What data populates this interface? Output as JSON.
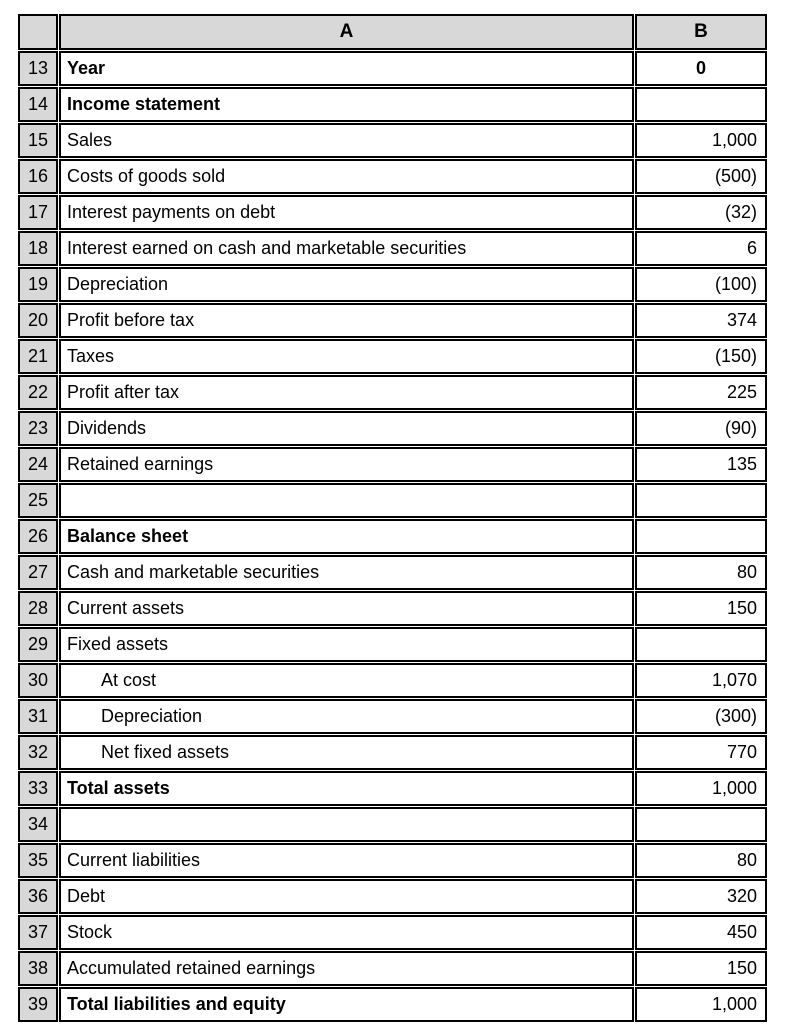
{
  "table": {
    "column_headers": [
      "A",
      "B"
    ],
    "colors": {
      "header_bg": "#d8d8d8",
      "grid_border": "#000000",
      "cell_bg": "#ffffff",
      "text": "#000000"
    },
    "rows": [
      {
        "num": "13",
        "label": "Year",
        "value": "0",
        "label_bold": true,
        "value_bold": true,
        "value_align": "center"
      },
      {
        "num": "14",
        "label": "Income statement",
        "value": "",
        "label_bold": true
      },
      {
        "num": "15",
        "label": "Sales",
        "value": "1,000"
      },
      {
        "num": "16",
        "label": "Costs of goods sold",
        "value": "(500)"
      },
      {
        "num": "17",
        "label": "Interest payments on debt",
        "value": "(32)"
      },
      {
        "num": "18",
        "label": "Interest earned on cash and marketable securities",
        "value": "6"
      },
      {
        "num": "19",
        "label": "Depreciation",
        "value": "(100)"
      },
      {
        "num": "20",
        "label": "Profit before tax",
        "value": "374"
      },
      {
        "num": "21",
        "label": "Taxes",
        "value": "(150)"
      },
      {
        "num": "22",
        "label": "Profit after tax",
        "value": "225"
      },
      {
        "num": "23",
        "label": "Dividends",
        "value": "(90)"
      },
      {
        "num": "24",
        "label": "Retained earnings",
        "value": "135"
      },
      {
        "num": "25",
        "label": "",
        "value": ""
      },
      {
        "num": "26",
        "label": "Balance sheet",
        "value": "",
        "label_bold": true
      },
      {
        "num": "27",
        "label": "Cash and marketable securities",
        "value": "80"
      },
      {
        "num": "28",
        "label": "Current assets",
        "value": "150"
      },
      {
        "num": "29",
        "label": "Fixed assets",
        "value": ""
      },
      {
        "num": "30",
        "label": "At cost",
        "value": "1,070",
        "indent": true
      },
      {
        "num": "31",
        "label": "Depreciation",
        "value": "(300)",
        "indent": true
      },
      {
        "num": "32",
        "label": "Net fixed assets",
        "value": "770",
        "indent": true
      },
      {
        "num": "33",
        "label": "Total assets",
        "value": "1,000",
        "label_bold": true
      },
      {
        "num": "34",
        "label": "",
        "value": ""
      },
      {
        "num": "35",
        "label": "Current liabilities",
        "value": "80"
      },
      {
        "num": "36",
        "label": "Debt",
        "value": "320"
      },
      {
        "num": "37",
        "label": "Stock",
        "value": "450"
      },
      {
        "num": "38",
        "label": "Accumulated retained earnings",
        "value": "150"
      },
      {
        "num": "39",
        "label": "Total liabilities and equity",
        "value": "1,000",
        "label_bold": true
      }
    ]
  }
}
